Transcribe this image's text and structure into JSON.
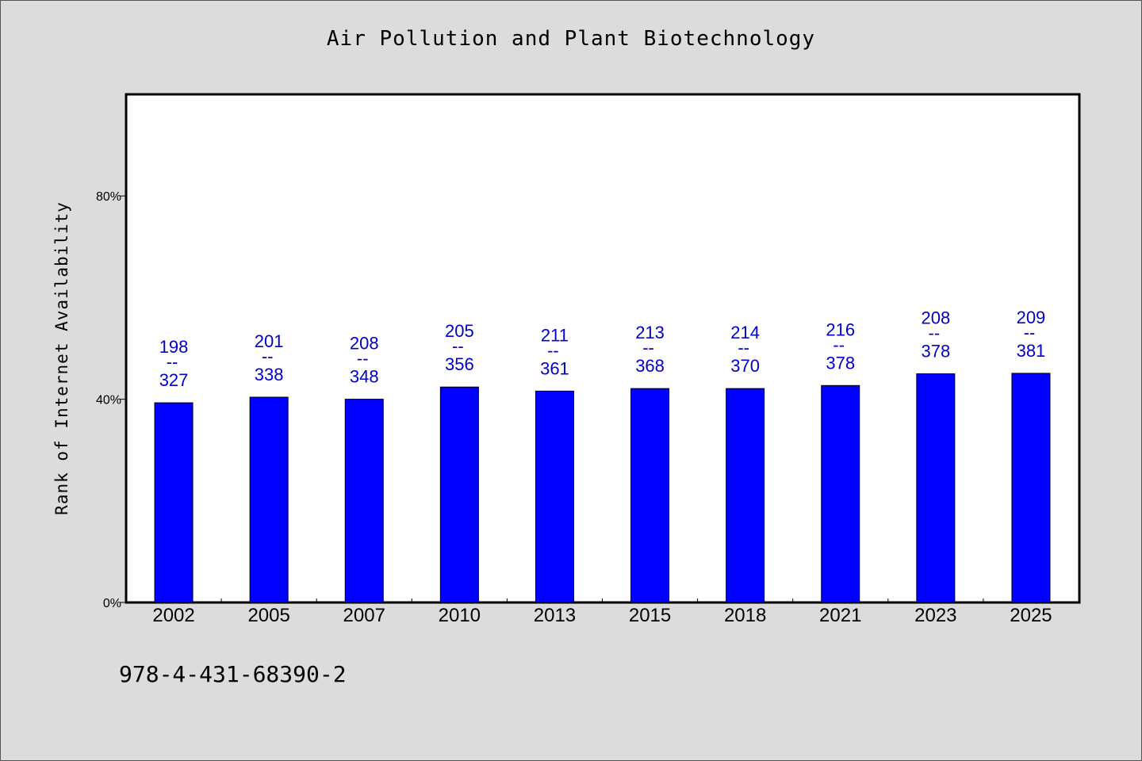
{
  "chart_data": {
    "type": "bar",
    "title": "Air Pollution and Plant Biotechnology",
    "ylabel": "Rank of Internet Availability",
    "xlabel": "",
    "categories": [
      "2002",
      "2005",
      "2007",
      "2010",
      "2013",
      "2015",
      "2018",
      "2021",
      "2023",
      "2025"
    ],
    "values": [
      39.3,
      40.4,
      40.0,
      42.4,
      41.6,
      42.1,
      42.1,
      42.7,
      45.0,
      45.1
    ],
    "labels_top": [
      "198",
      "201",
      "208",
      "205",
      "211",
      "213",
      "214",
      "216",
      "208",
      "209"
    ],
    "labels_bottom": [
      "327",
      "338",
      "348",
      "356",
      "361",
      "368",
      "370",
      "378",
      "378",
      "381"
    ],
    "label_separator": "--",
    "ylim": [
      0,
      100
    ],
    "yticks": [
      0,
      40,
      80
    ],
    "ytick_labels": [
      "0%",
      "40%",
      "80%"
    ],
    "grid": false,
    "bar_color": "#0000ff",
    "label_color": "#0000cc"
  },
  "footer": {
    "code": "978-4-431-68390-2"
  }
}
